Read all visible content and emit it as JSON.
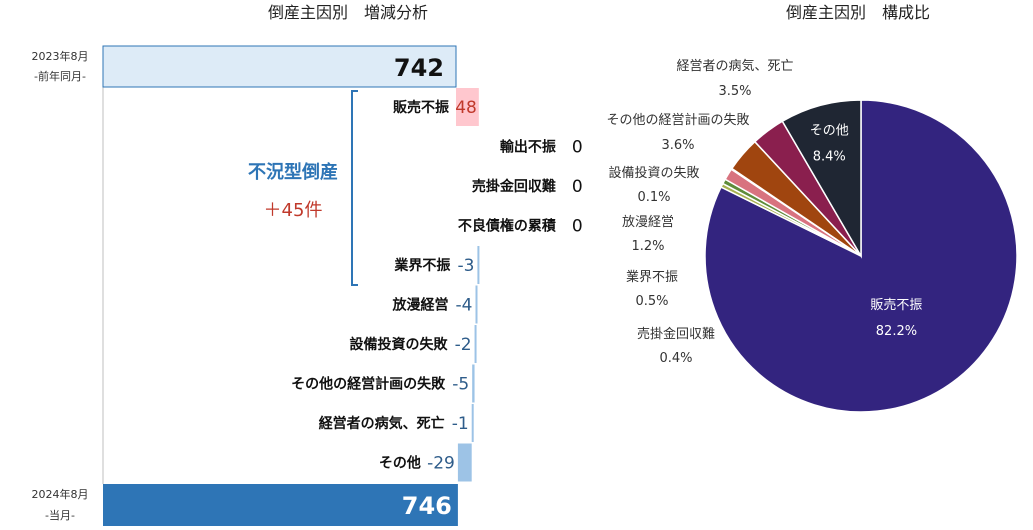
{
  "chart_data": [
    {
      "type": "bar",
      "title": "倒産主因別　増減分析",
      "start": {
        "period": "2023年8月",
        "note": "-前年同月-",
        "value": 742
      },
      "end": {
        "period": "2024年8月",
        "note": "-当月-",
        "value": 746
      },
      "categories": [
        "販売不振",
        "輸出不振",
        "売掛金回収難",
        "不良債権の累積",
        "業界不振",
        "放漫経営",
        "設備投資の失敗",
        "その他の経営計画の失敗",
        "経営者の病気、死亡",
        "その他"
      ],
      "changes": [
        48,
        0,
        0,
        0,
        -3,
        -4,
        -2,
        -5,
        -1,
        -29
      ],
      "change_labels": [
        "48",
        "0",
        "0",
        "0",
        "-3",
        "-4",
        "-2",
        "-5",
        "-1",
        "-29"
      ],
      "group": {
        "name": "不況型倒産",
        "count": "＋45件",
        "members": [
          "販売不振",
          "輸出不振",
          "売掛金回収難",
          "不良債権の累積",
          "業界不振"
        ]
      },
      "colors": {
        "start": "#DDEBF7",
        "end": "#2E75B6",
        "increase": "#FFC7CE",
        "decrease": "#9DC3E6",
        "increase_label": "#C0392B",
        "decrease_label": "#2E5C8A",
        "zero_label": "#111111"
      }
    },
    {
      "type": "pie",
      "title": "倒産主因別　構成比",
      "slices": [
        {
          "label": "販売不振",
          "percent": "82.2%",
          "value": 82.2,
          "color": "#33247F",
          "inside": true
        },
        {
          "label": "売掛金回収難",
          "percent": "0.4%",
          "value": 0.4,
          "color": "#A6B04F",
          "inside": false
        },
        {
          "label": "業界不振",
          "percent": "0.5%",
          "value": 0.5,
          "color": "#5E8B3A",
          "inside": false
        },
        {
          "label": "放漫経営",
          "percent": "1.2%",
          "value": 1.2,
          "color": "#D8737F",
          "inside": false
        },
        {
          "label": "設備投資の失敗",
          "percent": "0.1%",
          "value": 0.1,
          "color": "#8FBC8F",
          "inside": false
        },
        {
          "label": "その他の経営計画の失敗",
          "percent": "3.6%",
          "value": 3.6,
          "color": "#A0450F",
          "inside": false
        },
        {
          "label": "経営者の病気、死亡",
          "percent": "3.5%",
          "value": 3.5,
          "color": "#8A1F4E",
          "inside": false
        },
        {
          "label": "その他",
          "percent": "8.4%",
          "value": 8.4,
          "color": "#1F2633",
          "inside": true
        }
      ]
    }
  ]
}
